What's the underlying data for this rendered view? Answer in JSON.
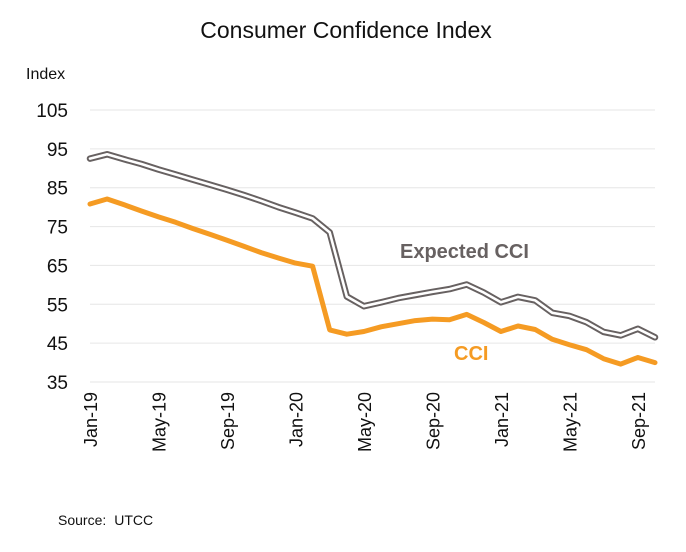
{
  "chart_data": {
    "type": "line",
    "title": "Consumer Confidence Index",
    "ylabel": "Index",
    "xlabel": "",
    "ylim": [
      35,
      105
    ],
    "yticks": [
      35,
      45,
      55,
      65,
      75,
      85,
      95,
      105
    ],
    "grid": true,
    "x": [
      "Jan-19",
      "Feb-19",
      "Mar-19",
      "Apr-19",
      "May-19",
      "Jun-19",
      "Jul-19",
      "Aug-19",
      "Sep-19",
      "Oct-19",
      "Nov-19",
      "Dec-19",
      "Jan-20",
      "Feb-20",
      "Mar-20",
      "Apr-20",
      "May-20",
      "Jun-20",
      "Jul-20",
      "Aug-20",
      "Sep-20",
      "Oct-20",
      "Nov-20",
      "Dec-20",
      "Jan-21",
      "Feb-21",
      "Mar-21",
      "Apr-21",
      "May-21",
      "Jun-21",
      "Jul-21",
      "Aug-21",
      "Sep-21",
      "Oct-21"
    ],
    "xtick_labels": [
      "Jan-19",
      "May-19",
      "Sep-19",
      "Jan-20",
      "May-20",
      "Sep-20",
      "Jan-21",
      "May-21",
      "Sep-21"
    ],
    "series": [
      {
        "name": "Expected CCI",
        "label": "Expected CCI",
        "color": "#676161",
        "values": [
          92.5,
          93.6,
          92.3,
          91.1,
          89.7,
          88.4,
          87.1,
          85.8,
          84.5,
          83.1,
          81.6,
          80.0,
          78.6,
          77.1,
          73.5,
          57.0,
          54.5,
          55.5,
          56.6,
          57.4,
          58.2,
          58.9,
          60.1,
          58.0,
          55.5,
          56.9,
          56.0,
          52.8,
          52.0,
          50.4,
          47.9,
          47.0,
          48.7,
          46.5
        ]
      },
      {
        "name": "CCI",
        "label": "CCI",
        "color": "#F59B23",
        "values": [
          80.8,
          82.1,
          80.6,
          79.0,
          77.5,
          76.1,
          74.5,
          73.0,
          71.5,
          69.9,
          68.3,
          66.9,
          65.6,
          64.8,
          48.4,
          47.3,
          48.0,
          49.2,
          50.0,
          50.8,
          51.2,
          51.0,
          52.4,
          50.3,
          48.0,
          49.4,
          48.5,
          46.0,
          44.6,
          43.3,
          41.0,
          39.6,
          41.3,
          40.0
        ]
      }
    ],
    "source_label": "Source:",
    "source": "UTCC"
  }
}
